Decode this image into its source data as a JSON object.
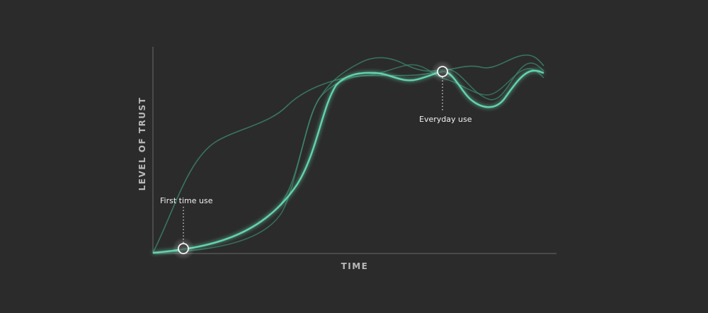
{
  "diagram": {
    "y_axis_label": "LEVEL OF TRUST",
    "x_axis_label": "TIME",
    "annotations": {
      "first": "First time use",
      "everyday": "Everyday use"
    },
    "colors": {
      "background": "#2b2b2b",
      "axis": "#6a6a6a",
      "main_curve": "#63d4ac",
      "faint_curve": "#3f8f72",
      "marker": "#f5f5f5"
    }
  }
}
